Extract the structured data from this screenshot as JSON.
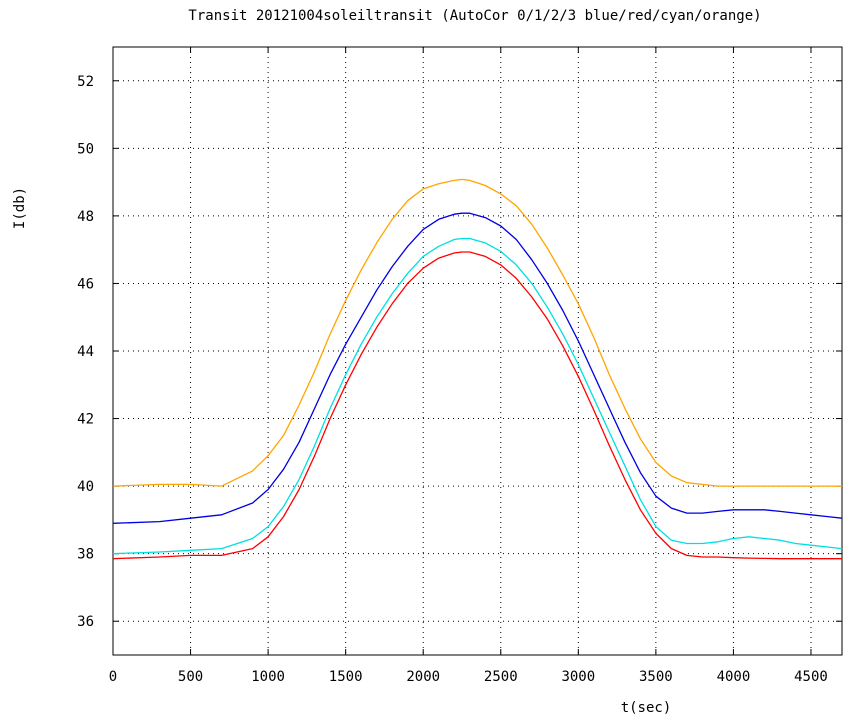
{
  "chart_data": {
    "type": "line",
    "title": "Transit 20121004soleiltransit (AutoCor 0/1/2/3 blue/red/cyan/orange)",
    "xlabel": "t(sec)",
    "ylabel": "I(db)",
    "xlim": [
      0,
      4700
    ],
    "ylim": [
      35,
      53
    ],
    "xticks": [
      0,
      500,
      1000,
      1500,
      2000,
      2500,
      3000,
      3500,
      4000,
      4500
    ],
    "yticks": [
      36,
      38,
      40,
      42,
      44,
      46,
      48,
      50,
      52
    ],
    "xtick_labels": [
      "0",
      "500",
      "1000",
      "1500",
      "2000",
      "2500",
      "3000",
      "3500",
      "4000",
      "4500"
    ],
    "ytick_labels": [
      "36",
      "38",
      "40",
      "42",
      "44",
      "46",
      "48",
      "50",
      "52"
    ],
    "grid": true,
    "x": [
      0,
      300,
      500,
      700,
      900,
      1000,
      1100,
      1200,
      1300,
      1400,
      1500,
      1600,
      1700,
      1800,
      1900,
      2000,
      2100,
      2200,
      2250,
      2300,
      2400,
      2500,
      2600,
      2700,
      2800,
      2900,
      3000,
      3100,
      3200,
      3300,
      3400,
      3500,
      3600,
      3700,
      3800,
      3900,
      4000,
      4100,
      4200,
      4300,
      4400,
      4500,
      4600,
      4700
    ],
    "series": [
      {
        "color": "#0000e0",
        "values": [
          38.9,
          38.95,
          39.05,
          39.15,
          39.5,
          39.9,
          40.5,
          41.3,
          42.3,
          43.3,
          44.2,
          45.0,
          45.8,
          46.5,
          47.1,
          47.6,
          47.9,
          48.05,
          48.08,
          48.08,
          47.95,
          47.7,
          47.3,
          46.7,
          46.0,
          45.2,
          44.3,
          43.3,
          42.3,
          41.3,
          40.4,
          39.7,
          39.35,
          39.2,
          39.2,
          39.25,
          39.3,
          39.3,
          39.3,
          39.25,
          39.2,
          39.15,
          39.1,
          39.05
        ]
      },
      {
        "color": "#ff0000",
        "values": [
          37.85,
          37.9,
          37.95,
          37.95,
          38.15,
          38.5,
          39.1,
          39.9,
          40.9,
          42.0,
          43.0,
          43.9,
          44.7,
          45.4,
          46.0,
          46.45,
          46.75,
          46.9,
          46.93,
          46.93,
          46.8,
          46.55,
          46.15,
          45.6,
          44.95,
          44.15,
          43.25,
          42.25,
          41.2,
          40.2,
          39.3,
          38.6,
          38.15,
          37.95,
          37.9,
          37.9,
          37.88,
          37.87,
          37.86,
          37.85,
          37.85,
          37.85,
          37.85,
          37.85
        ]
      },
      {
        "color": "#00e0e0",
        "values": [
          38.0,
          38.05,
          38.1,
          38.15,
          38.45,
          38.8,
          39.4,
          40.2,
          41.2,
          42.3,
          43.3,
          44.2,
          45.0,
          45.7,
          46.3,
          46.8,
          47.1,
          47.3,
          47.33,
          47.33,
          47.2,
          46.95,
          46.55,
          46.0,
          45.3,
          44.5,
          43.6,
          42.6,
          41.6,
          40.6,
          39.6,
          38.8,
          38.4,
          38.3,
          38.3,
          38.35,
          38.45,
          38.5,
          38.45,
          38.4,
          38.3,
          38.25,
          38.2,
          38.15
        ]
      },
      {
        "color": "#ffa500",
        "values": [
          40.0,
          40.05,
          40.05,
          40.0,
          40.45,
          40.9,
          41.5,
          42.4,
          43.4,
          44.5,
          45.5,
          46.4,
          47.2,
          47.9,
          48.45,
          48.8,
          48.95,
          49.05,
          49.08,
          49.05,
          48.9,
          48.65,
          48.3,
          47.75,
          47.05,
          46.25,
          45.4,
          44.4,
          43.3,
          42.3,
          41.4,
          40.7,
          40.3,
          40.1,
          40.05,
          40.0,
          40.0,
          40.0,
          40.0,
          40.0,
          40.0,
          40.0,
          40.0,
          40.0
        ]
      }
    ]
  }
}
